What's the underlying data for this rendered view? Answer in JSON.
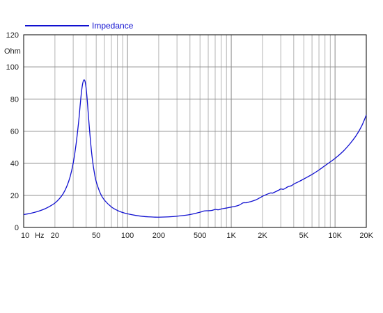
{
  "chart_data": {
    "type": "line",
    "title": "",
    "xlabel": "Hz",
    "ylabel": "Ohm",
    "x_scale": "log",
    "xlim": [
      10,
      20000
    ],
    "ylim": [
      0,
      120
    ],
    "grid": true,
    "legend_position": "top-left",
    "x_ticks": [
      {
        "value": 10,
        "label": "10"
      },
      {
        "value": 20,
        "label": "20"
      },
      {
        "value": 50,
        "label": "50"
      },
      {
        "value": 100,
        "label": "100"
      },
      {
        "value": 200,
        "label": "200"
      },
      {
        "value": 500,
        "label": "500"
      },
      {
        "value": 1000,
        "label": "1K"
      },
      {
        "value": 2000,
        "label": "2K"
      },
      {
        "value": 5000,
        "label": "5K"
      },
      {
        "value": 10000,
        "label": "10K"
      },
      {
        "value": 20000,
        "label": "20K"
      }
    ],
    "y_ticks": [
      {
        "value": 0,
        "label": "0"
      },
      {
        "value": 20,
        "label": "20"
      },
      {
        "value": 40,
        "label": "40"
      },
      {
        "value": 60,
        "label": "60"
      },
      {
        "value": 80,
        "label": "80"
      },
      {
        "value": 100,
        "label": "100"
      },
      {
        "value": 120,
        "label": "120"
      }
    ],
    "series": [
      {
        "name": "Impedance",
        "color": "#1010d0",
        "points": [
          [
            10,
            8.0
          ],
          [
            12,
            9.0
          ],
          [
            14,
            10.2
          ],
          [
            16,
            11.6
          ],
          [
            18,
            13.3
          ],
          [
            20,
            15.2
          ],
          [
            22,
            17.8
          ],
          [
            24,
            21.0
          ],
          [
            26,
            25.5
          ],
          [
            28,
            31.5
          ],
          [
            30,
            40.0
          ],
          [
            32,
            52.0
          ],
          [
            34,
            67.0
          ],
          [
            35,
            76.0
          ],
          [
            36,
            84.0
          ],
          [
            37,
            89.5
          ],
          [
            38,
            91.8
          ],
          [
            39,
            91.0
          ],
          [
            40,
            86.5
          ],
          [
            41,
            79.0
          ],
          [
            42,
            70.0
          ],
          [
            44,
            54.0
          ],
          [
            46,
            42.0
          ],
          [
            48,
            34.0
          ],
          [
            50,
            28.5
          ],
          [
            55,
            21.0
          ],
          [
            60,
            17.0
          ],
          [
            70,
            12.8
          ],
          [
            80,
            10.6
          ],
          [
            90,
            9.3
          ],
          [
            100,
            8.5
          ],
          [
            120,
            7.5
          ],
          [
            140,
            6.9
          ],
          [
            160,
            6.6
          ],
          [
            180,
            6.45
          ],
          [
            200,
            6.4
          ],
          [
            250,
            6.6
          ],
          [
            300,
            7.0
          ],
          [
            400,
            8.0
          ],
          [
            500,
            9.5
          ],
          [
            550,
            10.3
          ],
          [
            600,
            10.4
          ],
          [
            650,
            10.6
          ],
          [
            700,
            11.2
          ],
          [
            750,
            11.0
          ],
          [
            800,
            11.5
          ],
          [
            900,
            12.1
          ],
          [
            1000,
            12.7
          ],
          [
            1100,
            13.2
          ],
          [
            1200,
            14.0
          ],
          [
            1300,
            15.3
          ],
          [
            1400,
            15.4
          ],
          [
            1500,
            15.9
          ],
          [
            1700,
            17.0
          ],
          [
            1900,
            18.6
          ],
          [
            2000,
            19.4
          ],
          [
            2200,
            20.6
          ],
          [
            2400,
            21.5
          ],
          [
            2500,
            21.4
          ],
          [
            2700,
            22.4
          ],
          [
            2900,
            23.4
          ],
          [
            3000,
            24.0
          ],
          [
            3200,
            23.8
          ],
          [
            3500,
            25.3
          ],
          [
            3800,
            26.0
          ],
          [
            4000,
            27.0
          ],
          [
            4500,
            28.6
          ],
          [
            5000,
            30.2
          ],
          [
            6000,
            33.0
          ],
          [
            7000,
            35.8
          ],
          [
            8000,
            38.5
          ],
          [
            10000,
            43.0
          ],
          [
            12000,
            47.5
          ],
          [
            14000,
            52.3
          ],
          [
            16000,
            57.3
          ],
          [
            18000,
            63.0
          ],
          [
            20000,
            70.0
          ]
        ]
      }
    ]
  }
}
